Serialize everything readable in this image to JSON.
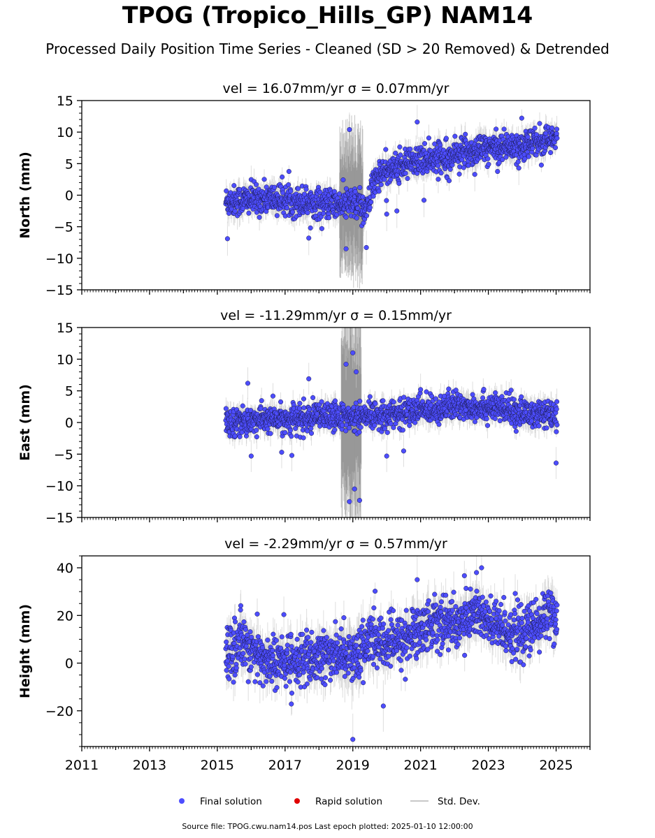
{
  "title": "TPOG (Tropico_Hills_GP) NAM14",
  "subtitle": "Processed Daily Position Time Series - Cleaned (SD > 20 Removed) & Detrended",
  "source_line": "Source file: TPOG.cwu.nam14.pos  Last epoch plotted: 2025-01-10 12:00:00",
  "legend": {
    "placement": "bottom-center",
    "items": [
      {
        "label": "Final solution",
        "color": "#4d4dff",
        "kind": "dot"
      },
      {
        "label": "Rapid solution",
        "color": "#e00000",
        "kind": "dot"
      },
      {
        "label": "Std. Dev.",
        "color": "#c8c8c8",
        "kind": "line"
      }
    ]
  },
  "colors": {
    "final": "#4d4dff",
    "rapid": "#e00000",
    "stddev": "#c8c8c8",
    "marker_edge": "#1a1a4a"
  },
  "chart_data": [
    {
      "type": "scatter",
      "panel": "north",
      "title": "vel = 16.07mm/yr   σ = 0.07mm/yr",
      "ylabel": "North (mm)",
      "xlim": [
        2011,
        2026
      ],
      "ylim": [
        -15,
        15
      ],
      "yticks": [
        -15,
        -10,
        -5,
        0,
        5,
        10,
        15
      ],
      "ytick_labels": [
        "−15",
        "−10",
        "−5",
        "0",
        "5",
        "10",
        "15"
      ],
      "grid": false,
      "data_span": [
        2015.25,
        2025.03
      ],
      "trend": [
        [
          2015.25,
          -1.0
        ],
        [
          2016.5,
          -0.5
        ],
        [
          2017.5,
          -1.0
        ],
        [
          2018.5,
          -1.5
        ],
        [
          2019.0,
          -1.5
        ],
        [
          2019.45,
          -2.0
        ],
        [
          2019.6,
          2.5
        ],
        [
          2020.0,
          4.0
        ],
        [
          2021.0,
          5.5
        ],
        [
          2022.0,
          6.5
        ],
        [
          2023.0,
          7.5
        ],
        [
          2024.0,
          8.0
        ],
        [
          2025.03,
          9.0
        ]
      ],
      "noise_sd": 1.2,
      "errorbar_sd": 1.5,
      "wide_error_window": [
        2018.6,
        2019.3,
        10
      ],
      "outliers": [
        [
          2015.3,
          -6.9
        ],
        [
          2017.7,
          -6.8
        ],
        [
          2018.8,
          -8.5
        ],
        [
          2018.9,
          10.4
        ],
        [
          2019.4,
          -8.3
        ],
        [
          2020.0,
          -3.0
        ],
        [
          2020.3,
          -2.5
        ],
        [
          2020.9,
          11.6
        ],
        [
          2021.1,
          -0.8
        ],
        [
          2022.6,
          3.3
        ],
        [
          2023.9,
          4.3
        ]
      ],
      "final_solution": {
        "x_start": 2015.25,
        "x_end": 2025.03,
        "note": "daily solutions, about 3500 points"
      }
    },
    {
      "type": "scatter",
      "panel": "east",
      "title": "vel = -11.29mm/yr   σ = 0.15mm/yr",
      "ylabel": "East (mm)",
      "xlim": [
        2011,
        2026
      ],
      "ylim": [
        -15,
        15
      ],
      "yticks": [
        -15,
        -10,
        -5,
        0,
        5,
        10,
        15
      ],
      "ytick_labels": [
        "−15",
        "−10",
        "−5",
        "0",
        "5",
        "10",
        "15"
      ],
      "grid": false,
      "data_span": [
        2015.25,
        2025.03
      ],
      "trend": [
        [
          2015.25,
          0.0
        ],
        [
          2016.5,
          0.5
        ],
        [
          2017.5,
          0.5
        ],
        [
          2018.5,
          1.0
        ],
        [
          2019.0,
          0.5
        ],
        [
          2019.5,
          1.0
        ],
        [
          2020.5,
          1.5
        ],
        [
          2021.0,
          2.0
        ],
        [
          2022.0,
          2.5
        ],
        [
          2023.0,
          2.5
        ],
        [
          2024.0,
          1.5
        ],
        [
          2025.03,
          1.0
        ]
      ],
      "noise_sd": 1.1,
      "errorbar_sd": 1.4,
      "wide_error_window": [
        2018.65,
        2019.25,
        14
      ],
      "outliers": [
        [
          2015.9,
          6.2
        ],
        [
          2016.0,
          -5.3
        ],
        [
          2016.9,
          -4.7
        ],
        [
          2017.2,
          -5.2
        ],
        [
          2017.7,
          6.9
        ],
        [
          2018.8,
          9.2
        ],
        [
          2018.9,
          -12.5
        ],
        [
          2019.0,
          11.0
        ],
        [
          2019.05,
          -10.5
        ],
        [
          2019.1,
          8.0
        ],
        [
          2019.2,
          -12.3
        ],
        [
          2020.0,
          -5.3
        ],
        [
          2020.5,
          -4.5
        ],
        [
          2021.0,
          5.2
        ],
        [
          2025.0,
          -6.4
        ]
      ],
      "final_solution": {
        "x_start": 2015.25,
        "x_end": 2025.03,
        "note": "daily solutions, about 3500 points"
      }
    },
    {
      "type": "scatter",
      "panel": "height",
      "title": "vel = -2.29mm/yr   σ = 0.57mm/yr",
      "ylabel": "Height (mm)",
      "xlabel": "",
      "xlim": [
        2011,
        2026
      ],
      "ylim": [
        -35,
        45
      ],
      "yticks": [
        -20,
        0,
        20,
        40
      ],
      "ytick_labels": [
        "−20",
        "0",
        "20",
        "40"
      ],
      "xticks": [
        2011,
        2013,
        2015,
        2017,
        2019,
        2021,
        2023,
        2025
      ],
      "xtick_labels": [
        "2011",
        "2013",
        "2015",
        "2017",
        "2019",
        "2021",
        "2023",
        "2025"
      ],
      "grid": false,
      "data_span": [
        2015.25,
        2025.03
      ],
      "trend": [
        [
          2015.25,
          3
        ],
        [
          2015.8,
          10
        ],
        [
          2016.2,
          2
        ],
        [
          2016.8,
          0
        ],
        [
          2017.3,
          2
        ],
        [
          2017.8,
          0
        ],
        [
          2018.3,
          4
        ],
        [
          2018.8,
          5
        ],
        [
          2019.2,
          2
        ],
        [
          2019.5,
          10
        ],
        [
          2020.0,
          8
        ],
        [
          2020.5,
          10
        ],
        [
          2021.0,
          14
        ],
        [
          2021.5,
          18
        ],
        [
          2022.0,
          16
        ],
        [
          2022.7,
          22
        ],
        [
          2023.0,
          16
        ],
        [
          2023.5,
          14
        ],
        [
          2024.0,
          12
        ],
        [
          2024.5,
          16
        ],
        [
          2024.85,
          24
        ],
        [
          2025.03,
          14
        ]
      ],
      "noise_sd": 5.5,
      "errorbar_sd": 6,
      "wide_error_window": [
        2018.6,
        2019.3,
        10
      ],
      "outliers": [
        [
          2019.0,
          -32
        ],
        [
          2019.9,
          -18
        ],
        [
          2020.9,
          35
        ],
        [
          2022.8,
          40
        ],
        [
          2022.65,
          38
        ]
      ],
      "final_solution": {
        "x_start": 2015.25,
        "x_end": 2025.03,
        "note": "daily solutions, about 3500 points"
      }
    }
  ]
}
